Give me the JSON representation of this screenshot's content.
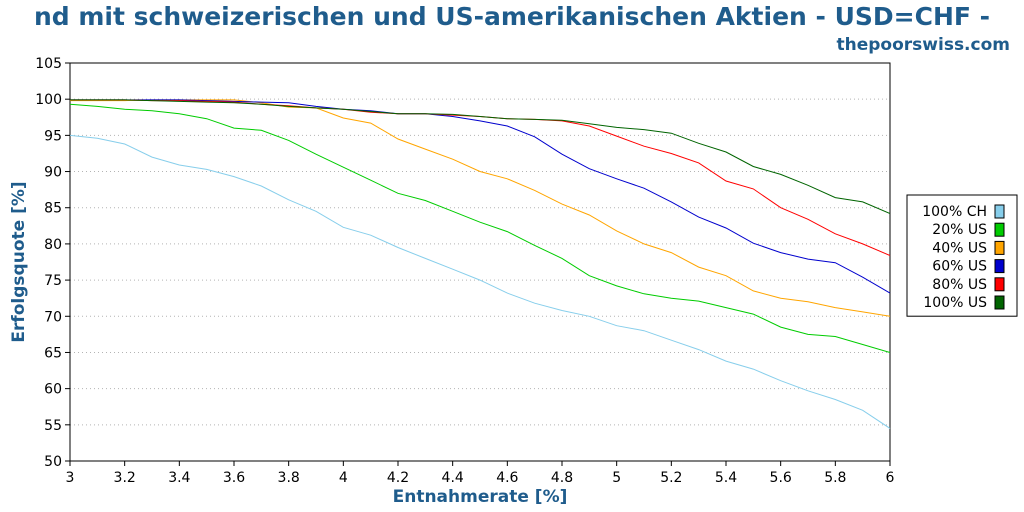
{
  "chart_data": {
    "type": "line",
    "title": "nd mit schweizerischen und US-amerikanischen Aktien - USD=CHF -",
    "source": "thepoorswiss.com",
    "xlabel": "Entnahmerate [%]",
    "ylabel": "Erfolgsquote [%]",
    "xlim": [
      3,
      6
    ],
    "ylim": [
      50,
      105
    ],
    "x_ticks": [
      "3",
      "3.2",
      "3.4",
      "3.6",
      "3.8",
      "4",
      "4.2",
      "4.4",
      "4.6",
      "4.8",
      "5",
      "5.2",
      "5.4",
      "5.6",
      "5.8",
      "6"
    ],
    "y_ticks": [
      "50",
      "55",
      "60",
      "65",
      "70",
      "75",
      "80",
      "85",
      "90",
      "95",
      "100",
      "105"
    ],
    "grid": true,
    "legend_position": "right",
    "x": [
      3.0,
      3.1,
      3.2,
      3.3,
      3.4,
      3.5,
      3.6,
      3.7,
      3.8,
      3.9,
      4.0,
      4.1,
      4.2,
      4.3,
      4.4,
      4.5,
      4.6,
      4.7,
      4.8,
      4.9,
      5.0,
      5.1,
      5.2,
      5.3,
      5.4,
      5.5,
      5.6,
      5.7,
      5.8,
      5.9,
      6.0
    ],
    "series": [
      {
        "name": "100% CH",
        "color": "#87ceeb",
        "values": [
          95.0,
          94.6,
          93.8,
          92.0,
          90.9,
          90.3,
          89.3,
          88.0,
          86.1,
          84.5,
          82.3,
          81.2,
          79.5,
          78.0,
          76.5,
          75.0,
          73.2,
          71.8,
          70.8,
          70.0,
          68.7,
          68.0,
          66.7,
          65.4,
          63.8,
          62.7,
          61.1,
          59.7,
          58.5,
          57.0,
          54.5
        ]
      },
      {
        "name": "20% US",
        "color": "#00cc00",
        "values": [
          99.3,
          99.0,
          98.6,
          98.4,
          98.0,
          97.3,
          96.0,
          95.7,
          94.3,
          92.4,
          90.6,
          88.8,
          87.0,
          86.0,
          84.5,
          83.0,
          81.7,
          79.8,
          78.0,
          75.6,
          74.2,
          73.1,
          72.5,
          72.1,
          71.2,
          70.3,
          68.5,
          67.5,
          67.2,
          66.1,
          65.0
        ]
      },
      {
        "name": "40% US",
        "color": "#ffa500",
        "values": [
          99.8,
          99.8,
          99.8,
          99.9,
          99.9,
          99.9,
          99.9,
          99.5,
          98.9,
          98.8,
          97.4,
          96.7,
          94.5,
          93.1,
          91.7,
          90.0,
          89.0,
          87.4,
          85.5,
          84.0,
          81.8,
          80.0,
          78.8,
          76.8,
          75.6,
          73.5,
          72.5,
          72.0,
          71.2,
          70.6,
          70.0
        ]
      },
      {
        "name": "60% US",
        "color": "#0000cd",
        "values": [
          99.9,
          99.9,
          99.9,
          99.9,
          99.9,
          99.8,
          99.7,
          99.6,
          99.5,
          99.0,
          98.6,
          98.4,
          98.0,
          98.0,
          97.6,
          97.0,
          96.3,
          94.8,
          92.4,
          90.4,
          89.0,
          87.7,
          85.8,
          83.7,
          82.2,
          80.1,
          78.8,
          77.9,
          77.4,
          75.4,
          73.2
        ]
      },
      {
        "name": "80% US",
        "color": "#ff0000",
        "values": [
          99.9,
          99.9,
          99.9,
          99.8,
          99.8,
          99.7,
          99.6,
          99.3,
          99.1,
          98.8,
          98.6,
          98.2,
          98.0,
          98.0,
          97.8,
          97.6,
          97.3,
          97.2,
          97.0,
          96.3,
          94.9,
          93.5,
          92.5,
          91.2,
          88.7,
          87.6,
          85.0,
          83.4,
          81.4,
          80.0,
          78.4
        ]
      },
      {
        "name": "100% US",
        "color": "#006400",
        "values": [
          99.9,
          99.9,
          99.9,
          99.8,
          99.7,
          99.6,
          99.5,
          99.3,
          99.0,
          98.8,
          98.6,
          98.3,
          98.0,
          98.0,
          97.9,
          97.6,
          97.3,
          97.2,
          97.1,
          96.6,
          96.1,
          95.8,
          95.3,
          93.9,
          92.7,
          90.7,
          89.6,
          88.1,
          86.4,
          85.8,
          84.2
        ]
      }
    ]
  }
}
